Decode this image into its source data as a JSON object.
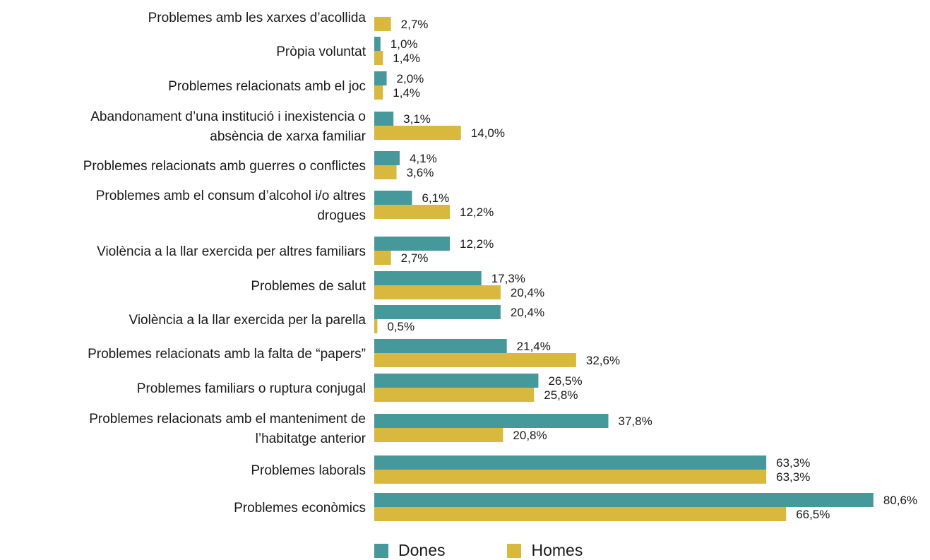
{
  "chart_data": {
    "type": "bar",
    "orientation": "horizontal",
    "categories": [
      "Problemes  amb les xarxes d’acollida",
      "Pròpia voluntat",
      "Problemes relacionats amb el joc",
      "Abandonament d’una institució i inexistencia o absència de xarxa familiar",
      "Problemes relacionats amb guerres o conflictes",
      "Problemes amb el consum d’alcohol i/o altres drogues",
      "Violència a la llar exercida per altres familiars",
      "Problemes de salut",
      "Violència a la llar exercida per la parella",
      "Problemes relacionats amb la falta de “papers”",
      "Problemes familiars o ruptura conjugal",
      "Problemes relacionats amb el manteniment de l’habitatge anterior",
      "Problemes laborals",
      "Problemes econòmics"
    ],
    "category_lines": [
      [
        "Problemes  amb les xarxes d’acollida"
      ],
      [
        "Pròpia voluntat"
      ],
      [
        "Problemes relacionats amb el joc"
      ],
      [
        "Abandonament d’una institució i inexistencia o",
        "absència de xarxa familiar"
      ],
      [
        "Problemes relacionats amb guerres o conflictes"
      ],
      [
        "Problemes amb el consum d’alcohol i/o altres",
        "drogues"
      ],
      [
        "Violència a la llar exercida per altres familiars"
      ],
      [
        "Problemes de salut"
      ],
      [
        "Violència a la llar exercida per la parella"
      ],
      [
        "Problemes relacionats amb la falta de “papers”"
      ],
      [
        "Problemes familiars o ruptura conjugal"
      ],
      [
        "Problemes relacionats amb el manteniment de",
        "l’habitatge anterior"
      ],
      [
        "Problemes laborals"
      ],
      [
        "Problemes econòmics"
      ]
    ],
    "series": [
      {
        "name": "Dones",
        "color": "#46999a",
        "values": [
          null,
          1.0,
          2.0,
          3.1,
          4.1,
          6.1,
          12.2,
          17.3,
          20.4,
          21.4,
          26.5,
          37.8,
          63.3,
          80.6
        ],
        "labels": [
          null,
          "1,0%",
          "2,0%",
          "3,1%",
          "4,1%",
          "6,1%",
          "12,2%",
          "17,3%",
          "20,4%",
          "21,4%",
          "26,5%",
          "37,8%",
          "63,3%",
          "80,6%"
        ]
      },
      {
        "name": "Homes",
        "color": "#d8b93d",
        "values": [
          2.7,
          1.4,
          1.4,
          14.0,
          3.6,
          12.2,
          2.7,
          20.4,
          0.5,
          32.6,
          25.8,
          20.8,
          63.3,
          66.5
        ],
        "labels": [
          "2,7%",
          "1,4%",
          "1,4%",
          "14,0%",
          "3,6%",
          "12,2%",
          "2,7%",
          "20,4%",
          "0,5%",
          "32,6%",
          "25,8%",
          "20,8%",
          "63,3%",
          "66,5%"
        ]
      }
    ],
    "xlim": [
      0,
      100
    ],
    "grid": false,
    "legend_position": "bottom"
  }
}
